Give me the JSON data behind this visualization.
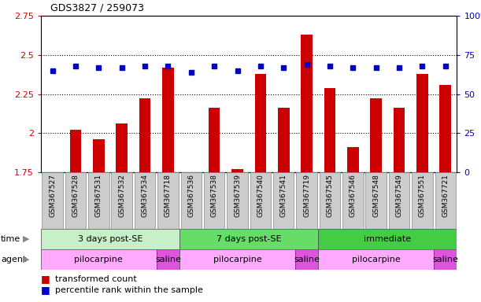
{
  "title": "GDS3827 / 259073",
  "samples": [
    "GSM367527",
    "GSM367528",
    "GSM367531",
    "GSM367532",
    "GSM367534",
    "GSM367718",
    "GSM367536",
    "GSM367538",
    "GSM367539",
    "GSM367540",
    "GSM367541",
    "GSM367719",
    "GSM367545",
    "GSM367546",
    "GSM367548",
    "GSM367549",
    "GSM367551",
    "GSM367721"
  ],
  "transformed_count": [
    1.75,
    2.02,
    1.96,
    2.06,
    2.22,
    2.42,
    1.75,
    2.16,
    1.77,
    2.38,
    2.16,
    2.63,
    2.29,
    1.91,
    2.22,
    2.16,
    2.38,
    2.31
  ],
  "percentile_rank": [
    65,
    68,
    67,
    67,
    68,
    68,
    64,
    68,
    65,
    68,
    67,
    69,
    68,
    67,
    67,
    67,
    68,
    68
  ],
  "ylim_left": [
    1.75,
    2.75
  ],
  "ylim_right": [
    0,
    100
  ],
  "yticks_left": [
    1.75,
    2.0,
    2.25,
    2.5,
    2.75
  ],
  "yticks_right": [
    0,
    25,
    50,
    75,
    100
  ],
  "ytick_labels_left": [
    "1.75",
    "2",
    "2.25",
    "2.5",
    "2.75"
  ],
  "ytick_labels_right": [
    "0",
    "25",
    "50",
    "75",
    "100%"
  ],
  "bar_color": "#cc0000",
  "dot_color": "#0000cc",
  "bar_bottom": 1.75,
  "xtick_bg_color": "#cccccc",
  "time_groups": [
    {
      "label": "3 days post-SE",
      "start": 0,
      "end": 5,
      "color": "#c8f0c8"
    },
    {
      "label": "7 days post-SE",
      "start": 6,
      "end": 11,
      "color": "#66dd66"
    },
    {
      "label": "immediate",
      "start": 12,
      "end": 17,
      "color": "#44cc44"
    }
  ],
  "agent_groups": [
    {
      "label": "pilocarpine",
      "start": 0,
      "end": 4,
      "color": "#ffaaff"
    },
    {
      "label": "saline",
      "start": 5,
      "end": 5,
      "color": "#dd55dd"
    },
    {
      "label": "pilocarpine",
      "start": 6,
      "end": 10,
      "color": "#ffaaff"
    },
    {
      "label": "saline",
      "start": 11,
      "end": 11,
      "color": "#dd55dd"
    },
    {
      "label": "pilocarpine",
      "start": 12,
      "end": 16,
      "color": "#ffaaff"
    },
    {
      "label": "saline",
      "start": 17,
      "end": 17,
      "color": "#dd55dd"
    }
  ]
}
